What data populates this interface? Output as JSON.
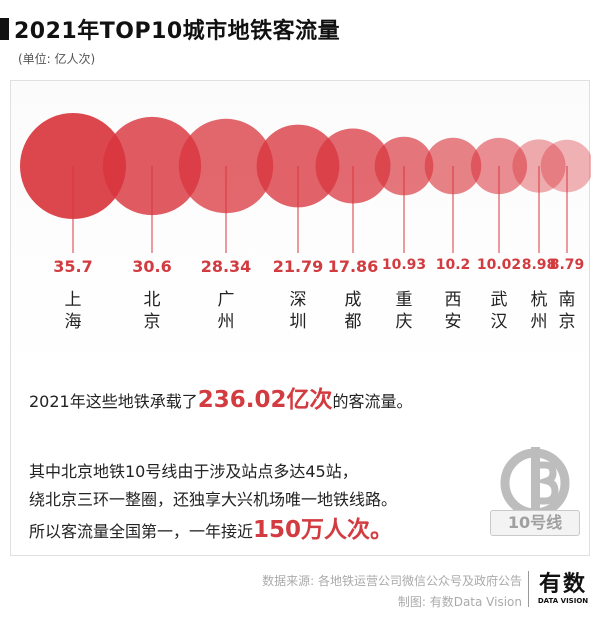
{
  "title": "2021年TOP10城市地铁客流量",
  "unit": "(单位: 亿人次)",
  "chart_data": {
    "type": "bubble",
    "title": "2021年TOP10城市地铁客流量",
    "unit": "亿人次",
    "categories": [
      "上海",
      "北京",
      "广州",
      "深圳",
      "成都",
      "重庆",
      "西安",
      "武汉",
      "杭州",
      "南京"
    ],
    "values": [
      35.7,
      30.6,
      28.34,
      21.79,
      17.86,
      10.93,
      10.2,
      10.02,
      8.98,
      8.79
    ],
    "value_labels": [
      "35.7",
      "30.6",
      "28.34",
      "21.79",
      "17.86",
      "10.93",
      "10.2",
      "10.02",
      "8.98",
      "8.79"
    ],
    "color": "#d9363e"
  },
  "text": {
    "line1_pre": "2021年这些地铁承载了",
    "line1_hl": "236.02亿次",
    "line1_post": "的客流量。",
    "line2": "其中北京地铁10号线由于涉及站点多达45站，",
    "line3": "绕北京三环一整圈，还独享大兴机场唯一地铁线路。",
    "line4_pre": "所以客流量全国第一，一年接近",
    "line4_hl": "150万人次。"
  },
  "badge": "10号线",
  "footer": {
    "source": "数据来源: 各地铁运营公司微信公众号及政府公告",
    "made_by": "制图: 有数Data Vision"
  },
  "brand": {
    "name": "有数",
    "sub": "DATA VISION"
  }
}
